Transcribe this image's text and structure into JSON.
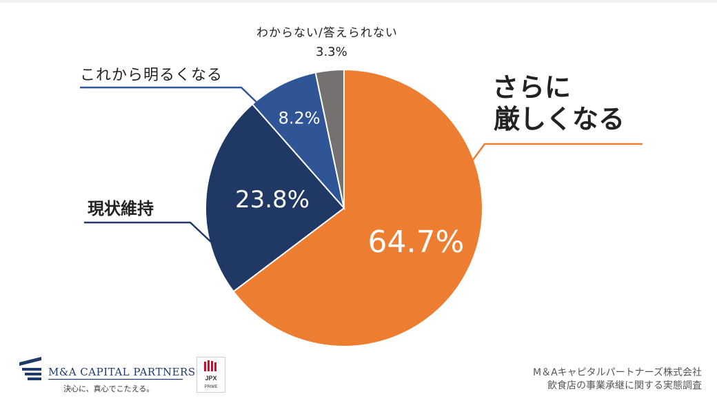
{
  "chart_data": {
    "type": "pie",
    "slices": [
      {
        "label": "さらに厳しくなる",
        "label_lines": [
          "さらに",
          "厳しくなる"
        ],
        "value": 64.7,
        "display": "64.7%",
        "color": "#ed7d31"
      },
      {
        "label": "現状維持",
        "value": 23.8,
        "display": "23.8%",
        "color": "#203864"
      },
      {
        "label": "これから明るくなる",
        "value": 8.2,
        "display": "8.2%",
        "color": "#2f5597"
      },
      {
        "label": "わからない/答えられない",
        "value": 3.3,
        "display": "3.3%",
        "color": "#767171"
      }
    ]
  },
  "footer": {
    "brand": "M&A CAPITAL PARTNERS",
    "tagline": "決心に、真心でこたえる。",
    "jpx_top": "JPX",
    "jpx_bottom": "PRIME",
    "credit_line1": "M＆Aキャピタルパートナーズ株式会社",
    "credit_line2": "飲食店の事業承継に関する実態調査"
  }
}
